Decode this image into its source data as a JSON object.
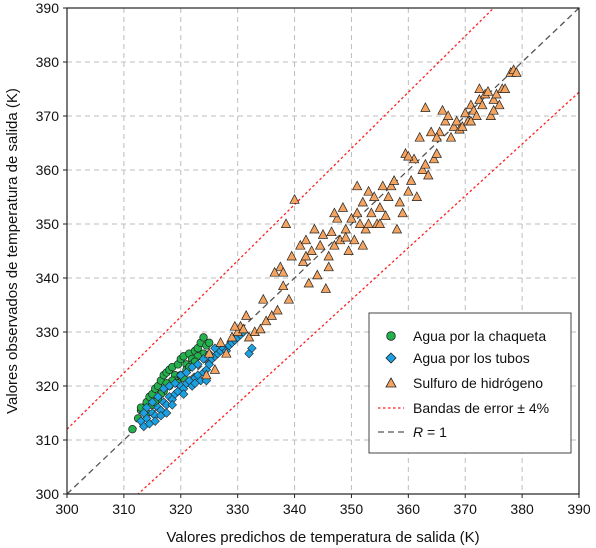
{
  "chart_data": {
    "type": "scatter",
    "xlabel": "Valores predichos de temperatura de salida (K)",
    "ylabel": "Valores observados de temperatura de salida (K)",
    "xlim": [
      300,
      390
    ],
    "ylim": [
      300,
      390
    ],
    "xticks": [
      300,
      310,
      320,
      330,
      340,
      350,
      360,
      370,
      380,
      390
    ],
    "yticks": [
      300,
      310,
      320,
      330,
      340,
      350,
      360,
      370,
      380,
      390
    ],
    "grid": true,
    "legend_position": "bottom-right",
    "series": [
      {
        "name": "Agua por la chaqueta",
        "marker": "circle",
        "color": "#22b14c",
        "points": [
          [
            311.5,
            312
          ],
          [
            312.5,
            314
          ],
          [
            313,
            315.5
          ],
          [
            313.5,
            316
          ],
          [
            314,
            317
          ],
          [
            314.5,
            318
          ],
          [
            315,
            318.5
          ],
          [
            315.5,
            319.5
          ],
          [
            316,
            320
          ],
          [
            316.5,
            321
          ],
          [
            317,
            322
          ],
          [
            317.5,
            322.5
          ],
          [
            318,
            323
          ],
          [
            318.5,
            323.5
          ],
          [
            319,
            322
          ],
          [
            319.5,
            324
          ],
          [
            320,
            325
          ],
          [
            320.5,
            325.5
          ],
          [
            321,
            324
          ],
          [
            321.5,
            326
          ],
          [
            322,
            325
          ],
          [
            322.5,
            326.5
          ],
          [
            323,
            327
          ],
          [
            323.5,
            328
          ],
          [
            324,
            329
          ],
          [
            324.5,
            327.5
          ],
          [
            325,
            328
          ],
          [
            313,
            316
          ],
          [
            314,
            315
          ],
          [
            315,
            316.5
          ],
          [
            316,
            317.5
          ],
          [
            317,
            319
          ],
          [
            318,
            320
          ],
          [
            319,
            321
          ],
          [
            320,
            322
          ],
          [
            321,
            323
          ],
          [
            322,
            324
          ],
          [
            316.5,
            318.5
          ],
          [
            318.5,
            321
          ],
          [
            319.5,
            320.5
          ],
          [
            320.5,
            321.5
          ],
          [
            321.5,
            323.5
          ],
          [
            317.5,
            320.5
          ],
          [
            315.5,
            317
          ],
          [
            324,
            326
          ],
          [
            323,
            325.5
          ],
          [
            322.5,
            324.5
          ]
        ]
      },
      {
        "name": "Agua por los tubos",
        "marker": "diamond",
        "color": "#1ba1e2",
        "points": [
          [
            313,
            313.5
          ],
          [
            313.5,
            312.5
          ],
          [
            314,
            314
          ],
          [
            314.5,
            313
          ],
          [
            315,
            315
          ],
          [
            315.5,
            314.5
          ],
          [
            316,
            316
          ],
          [
            316.5,
            315.5
          ],
          [
            317,
            317
          ],
          [
            317.5,
            316.5
          ],
          [
            318,
            318
          ],
          [
            318.5,
            317.5
          ],
          [
            319,
            318.5
          ],
          [
            319.5,
            319
          ],
          [
            320,
            320
          ],
          [
            320.5,
            319.5
          ],
          [
            321,
            320.5
          ],
          [
            321.5,
            321
          ],
          [
            322,
            320
          ],
          [
            322.5,
            321.5
          ],
          [
            323,
            322
          ],
          [
            323.5,
            321
          ],
          [
            324,
            322.5
          ],
          [
            324.5,
            323
          ],
          [
            325,
            324
          ],
          [
            325.5,
            325
          ],
          [
            326,
            325.5
          ],
          [
            326.5,
            326
          ],
          [
            327,
            326.5
          ],
          [
            327.5,
            327
          ],
          [
            328,
            326.5
          ],
          [
            328.5,
            327.5
          ],
          [
            329,
            328
          ],
          [
            329.5,
            328.5
          ],
          [
            330,
            329
          ],
          [
            330.5,
            329.5
          ],
          [
            331,
            330
          ],
          [
            332,
            326
          ],
          [
            332.5,
            327
          ],
          [
            314,
            316
          ],
          [
            315,
            317
          ],
          [
            316,
            318
          ],
          [
            317,
            319.5
          ],
          [
            318,
            320
          ],
          [
            319,
            320.5
          ],
          [
            320,
            322
          ],
          [
            321,
            322.5
          ],
          [
            322,
            323.5
          ],
          [
            323,
            324
          ],
          [
            324,
            325
          ],
          [
            325,
            326
          ],
          [
            326,
            327
          ],
          [
            313.5,
            315
          ],
          [
            316.5,
            314.5
          ],
          [
            318.5,
            316.5
          ],
          [
            320.5,
            318.5
          ],
          [
            322.5,
            320.5
          ],
          [
            324.5,
            321
          ],
          [
            315.5,
            313.5
          ],
          [
            317.5,
            315
          ]
        ]
      },
      {
        "name": "Sulfuro de hidrógeno",
        "marker": "triangle",
        "color": "#f4a460",
        "points": [
          [
            324.5,
            322
          ],
          [
            325,
            326
          ],
          [
            326,
            323
          ],
          [
            327,
            328
          ],
          [
            328,
            326
          ],
          [
            329,
            329
          ],
          [
            330,
            330
          ],
          [
            330.5,
            331
          ],
          [
            331,
            330.5
          ],
          [
            332,
            329
          ],
          [
            333,
            330
          ],
          [
            334,
            330.5
          ],
          [
            335,
            332
          ],
          [
            336,
            333
          ],
          [
            337,
            334
          ],
          [
            337.5,
            342
          ],
          [
            338,
            341
          ],
          [
            338.5,
            350
          ],
          [
            339,
            336
          ],
          [
            339.5,
            344
          ],
          [
            340,
            354.5
          ],
          [
            341,
            346
          ],
          [
            341.5,
            343
          ],
          [
            342,
            347
          ],
          [
            342.5,
            339
          ],
          [
            343,
            345
          ],
          [
            344,
            340.5
          ],
          [
            344.5,
            346
          ],
          [
            345,
            348
          ],
          [
            345.5,
            338
          ],
          [
            346,
            342
          ],
          [
            346.5,
            348.5
          ],
          [
            347,
            346
          ],
          [
            347.5,
            351
          ],
          [
            348,
            347
          ],
          [
            348.5,
            353
          ],
          [
            349,
            349
          ],
          [
            349.5,
            345
          ],
          [
            350,
            351
          ],
          [
            350.5,
            347
          ],
          [
            351,
            352
          ],
          [
            351.5,
            350
          ],
          [
            352,
            354
          ],
          [
            352.5,
            349
          ],
          [
            353,
            356
          ],
          [
            353.5,
            352
          ],
          [
            354,
            355
          ],
          [
            354.5,
            350
          ],
          [
            355,
            353
          ],
          [
            355.5,
            357
          ],
          [
            356,
            351.5
          ],
          [
            356.5,
            355
          ],
          [
            357,
            357
          ],
          [
            358,
            349
          ],
          [
            358.5,
            354
          ],
          [
            359,
            352
          ],
          [
            359.5,
            363
          ],
          [
            360,
            356
          ],
          [
            360.5,
            358
          ],
          [
            361,
            362
          ],
          [
            361.5,
            355
          ],
          [
            362,
            366
          ],
          [
            362.5,
            360
          ],
          [
            363,
            361
          ],
          [
            363.5,
            359
          ],
          [
            364,
            367
          ],
          [
            364.5,
            362
          ],
          [
            365,
            363
          ],
          [
            365.5,
            367
          ],
          [
            366,
            371
          ],
          [
            366.5,
            369
          ],
          [
            367,
            370
          ],
          [
            367.5,
            366
          ],
          [
            368,
            368
          ],
          [
            368.5,
            369
          ],
          [
            369,
            367.5
          ],
          [
            369.5,
            368
          ],
          [
            370,
            370.5
          ],
          [
            370.5,
            369
          ],
          [
            371,
            372
          ],
          [
            371.5,
            371
          ],
          [
            372,
            370
          ],
          [
            372.5,
            373
          ],
          [
            373,
            372
          ],
          [
            373.5,
            374
          ],
          [
            374,
            374.5
          ],
          [
            374.5,
            370
          ],
          [
            375,
            373
          ],
          [
            375.5,
            374
          ],
          [
            376,
            372
          ],
          [
            376.5,
            375
          ],
          [
            377,
            375
          ],
          [
            378,
            378
          ],
          [
            378.5,
            378.5
          ],
          [
            379,
            378
          ],
          [
            363,
            371.5
          ],
          [
            357.5,
            358
          ],
          [
            351,
            357
          ],
          [
            353,
            350
          ],
          [
            346,
            344
          ],
          [
            349,
            347.5
          ],
          [
            343.5,
            349
          ],
          [
            338,
            338.5
          ],
          [
            336.5,
            341
          ],
          [
            334.5,
            336
          ],
          [
            331.5,
            333
          ],
          [
            329.5,
            331
          ],
          [
            371,
            369
          ],
          [
            372.5,
            375
          ],
          [
            375,
            371
          ],
          [
            365,
            366
          ],
          [
            360,
            362.5
          ],
          [
            355,
            350
          ],
          [
            352,
            346
          ],
          [
            347,
            352
          ],
          [
            342,
            344
          ]
        ]
      },
      {
        "name": "Bandas de error ± 4%",
        "type": "line",
        "style": "dotted",
        "color": "#ff2020",
        "lines": [
          {
            "slope": 1.04,
            "intercept": 0
          },
          {
            "slope": 0.96,
            "intercept": 0
          }
        ]
      },
      {
        "name": "R = 1",
        "type": "line",
        "style": "dashed",
        "color": "#555555",
        "lines": [
          {
            "slope": 1,
            "intercept": 0
          }
        ]
      }
    ]
  },
  "legend": {
    "items": [
      {
        "label": "Agua por la chaqueta",
        "marker": "circle"
      },
      {
        "label": "Agua por los tubos",
        "marker": "diamond"
      },
      {
        "label": "Sulfuro de hidrógeno",
        "marker": "triangle"
      },
      {
        "label": "Bandas de error ± 4%",
        "marker": "red-dotted-line"
      },
      {
        "label_italic": "R",
        "label_rest": " = 1",
        "marker": "gray-dashed-line"
      }
    ]
  }
}
